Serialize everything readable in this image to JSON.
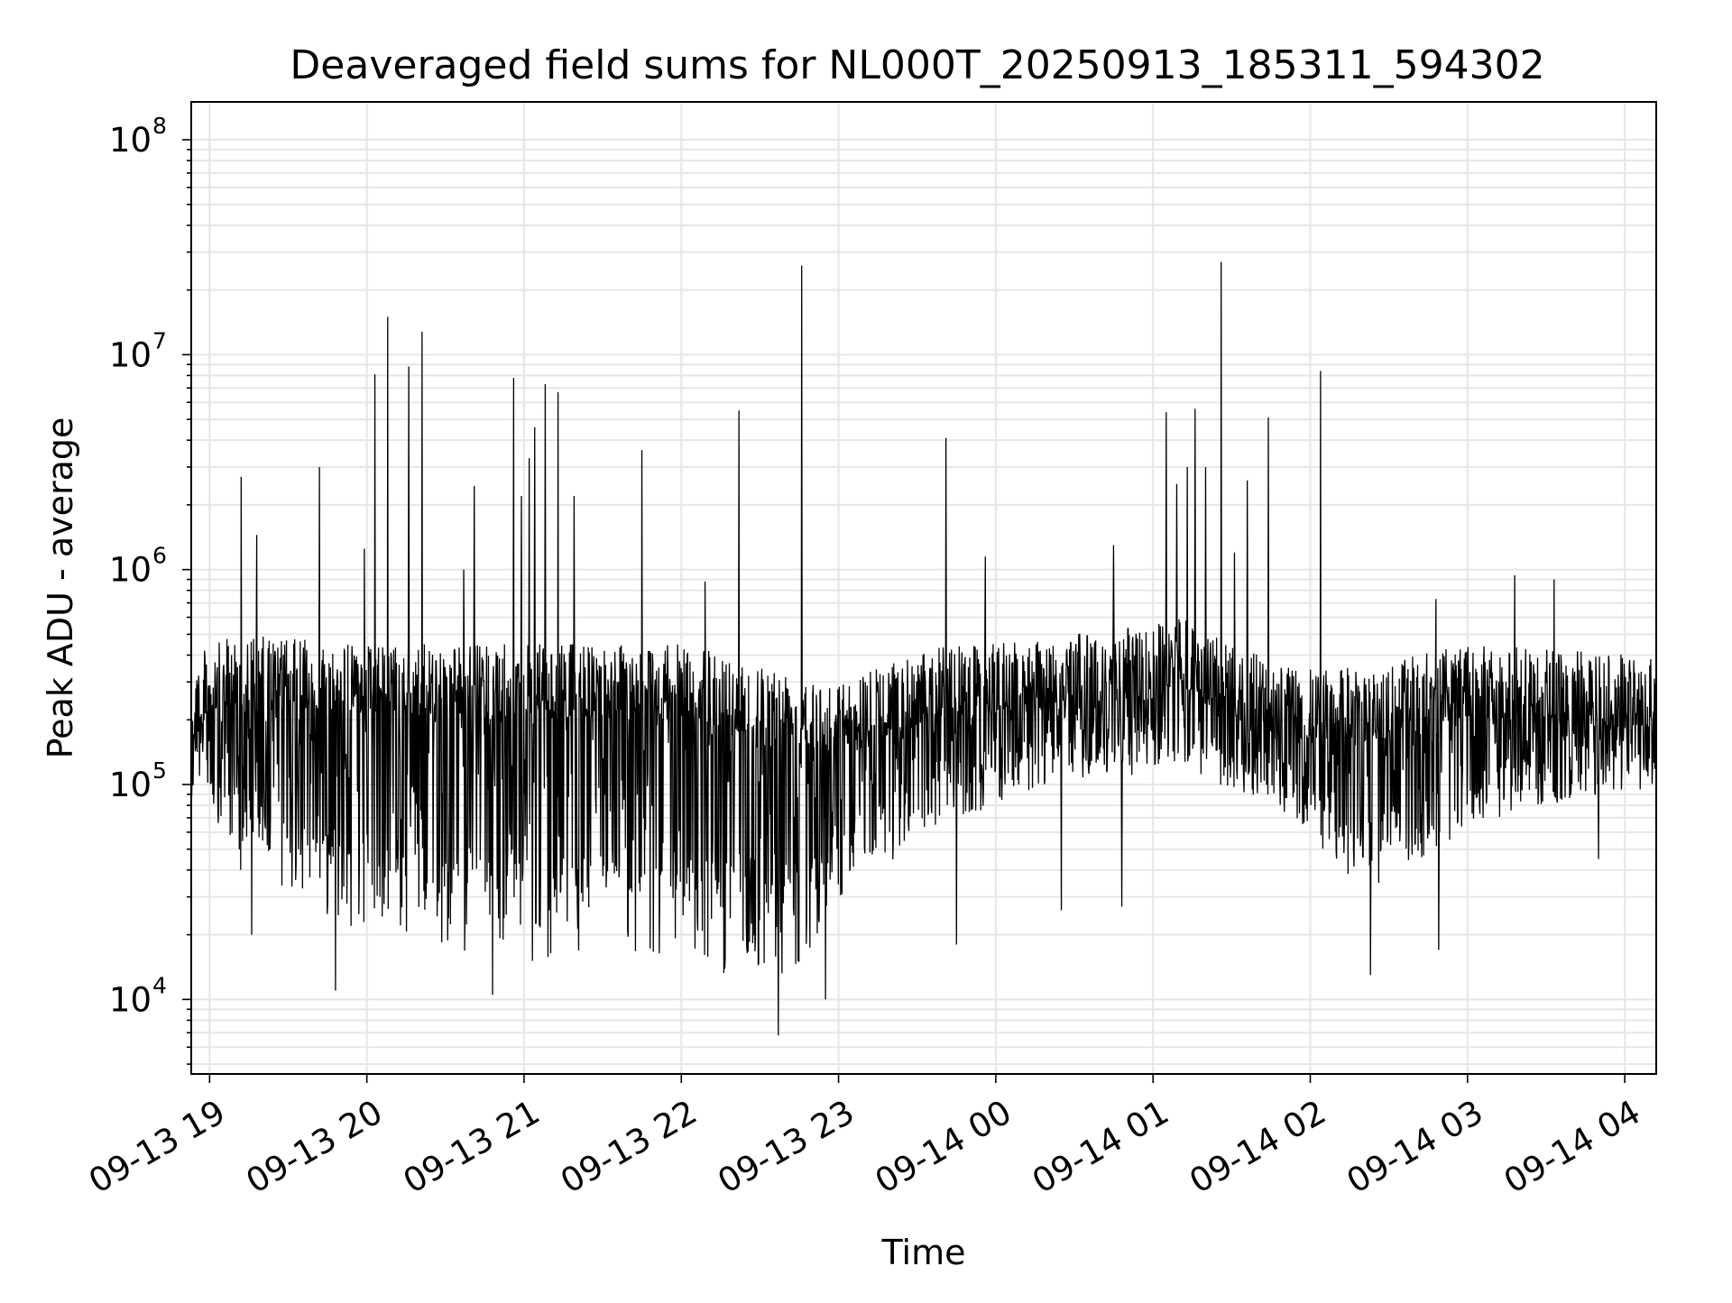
{
  "chart_data": {
    "type": "line",
    "title": "Deaveraged field sums for NL000T_20250913_185311_594302",
    "xlabel": "Time",
    "ylabel": "Peak ADU - average",
    "y_scale": "log",
    "grid": true,
    "legend": "none",
    "xlim": [
      "2025-09-13T18:53",
      "2025-09-14T04:12"
    ],
    "ylim": [
      4500,
      150000000
    ],
    "x_tick_labels": [
      "09-13 19",
      "09-13 20",
      "09-13 21",
      "09-13 22",
      "09-13 23",
      "09-14 00",
      "09-14 01",
      "09-14 02",
      "09-14 03",
      "09-14 04"
    ],
    "x_ticks": [
      "2025-09-13T19:00",
      "2025-09-13T20:00",
      "2025-09-13T21:00",
      "2025-09-13T22:00",
      "2025-09-13T23:00",
      "2025-09-14T00:00",
      "2025-09-14T01:00",
      "2025-09-14T02:00",
      "2025-09-14T03:00",
      "2025-09-14T04:00"
    ],
    "y_tick_labels": [
      {
        "base": "10",
        "exp": "4",
        "value": 10000
      },
      {
        "base": "10",
        "exp": "5",
        "value": 100000
      },
      {
        "base": "10",
        "exp": "6",
        "value": 1000000
      },
      {
        "base": "10",
        "exp": "7",
        "value": 10000000
      },
      {
        "base": "10",
        "exp": "8",
        "value": 100000000
      }
    ],
    "line_color": "#000000",
    "grid_color": "#e6e6e6",
    "baseline_profile": [
      {
        "t": "2025-09-13T18:53",
        "hi": 400000,
        "lo": 100000
      },
      {
        "t": "2025-09-13T19:10",
        "hi": 500000,
        "lo": 40000
      },
      {
        "t": "2025-09-13T20:00",
        "hi": 450000,
        "lo": 20000
      },
      {
        "t": "2025-09-13T21:00",
        "hi": 450000,
        "lo": 15000
      },
      {
        "t": "2025-09-13T22:00",
        "hi": 450000,
        "lo": 15000
      },
      {
        "t": "2025-09-13T22:40",
        "hi": 350000,
        "lo": 11000
      },
      {
        "t": "2025-09-13T23:00",
        "hi": 300000,
        "lo": 30000
      },
      {
        "t": "2025-09-13T23:40",
        "hi": 450000,
        "lo": 60000
      },
      {
        "t": "2025-09-14T00:30",
        "hi": 500000,
        "lo": 120000
      },
      {
        "t": "2025-09-14T01:10",
        "hi": 600000,
        "lo": 120000
      },
      {
        "t": "2025-09-14T01:50",
        "hi": 350000,
        "lo": 80000
      },
      {
        "t": "2025-09-14T02:20",
        "hi": 350000,
        "lo": 30000
      },
      {
        "t": "2025-09-14T03:00",
        "hi": 450000,
        "lo": 60000
      },
      {
        "t": "2025-09-14T04:12",
        "hi": 400000,
        "lo": 120000
      }
    ],
    "spikes": [
      {
        "t": "2025-09-13T19:12",
        "y": 2700000
      },
      {
        "t": "2025-09-13T19:18",
        "y": 1450000
      },
      {
        "t": "2025-09-13T19:42",
        "y": 3000000
      },
      {
        "t": "2025-09-13T19:59",
        "y": 1250000
      },
      {
        "t": "2025-09-13T20:03",
        "y": 8100000
      },
      {
        "t": "2025-09-13T20:08",
        "y": 15000000
      },
      {
        "t": "2025-09-13T20:16",
        "y": 8800000
      },
      {
        "t": "2025-09-13T20:21",
        "y": 12800000
      },
      {
        "t": "2025-09-13T20:37",
        "y": 1000000
      },
      {
        "t": "2025-09-13T20:41",
        "y": 2450000
      },
      {
        "t": "2025-09-13T20:56",
        "y": 7800000
      },
      {
        "t": "2025-09-13T20:59",
        "y": 2200000
      },
      {
        "t": "2025-09-13T21:02",
        "y": 3300000
      },
      {
        "t": "2025-09-13T21:04",
        "y": 4600000
      },
      {
        "t": "2025-09-13T21:08",
        "y": 7300000
      },
      {
        "t": "2025-09-13T21:13",
        "y": 6700000
      },
      {
        "t": "2025-09-13T21:19",
        "y": 2200000
      },
      {
        "t": "2025-09-13T21:45",
        "y": 3600000
      },
      {
        "t": "2025-09-13T22:09",
        "y": 880000
      },
      {
        "t": "2025-09-13T22:22",
        "y": 5500000
      },
      {
        "t": "2025-09-13T22:46",
        "y": 26000000
      },
      {
        "t": "2025-09-13T23:41",
        "y": 4100000
      },
      {
        "t": "2025-09-13T23:56",
        "y": 1150000
      },
      {
        "t": "2025-09-14T00:45",
        "y": 1300000
      },
      {
        "t": "2025-09-14T01:05",
        "y": 5400000
      },
      {
        "t": "2025-09-14T01:09",
        "y": 2500000
      },
      {
        "t": "2025-09-14T01:13",
        "y": 3000000
      },
      {
        "t": "2025-09-14T01:16",
        "y": 5600000
      },
      {
        "t": "2025-09-14T01:20",
        "y": 3000000
      },
      {
        "t": "2025-09-14T01:26",
        "y": 27000000
      },
      {
        "t": "2025-09-14T01:31",
        "y": 1200000
      },
      {
        "t": "2025-09-14T01:36",
        "y": 2600000
      },
      {
        "t": "2025-09-14T01:44",
        "y": 5100000
      },
      {
        "t": "2025-09-14T02:04",
        "y": 8400000
      },
      {
        "t": "2025-09-14T02:48",
        "y": 730000
      },
      {
        "t": "2025-09-14T03:18",
        "y": 940000
      },
      {
        "t": "2025-09-14T03:33",
        "y": 900000
      }
    ],
    "dips": [
      {
        "t": "2025-09-13T19:16",
        "y": 20000
      },
      {
        "t": "2025-09-13T19:48",
        "y": 11000
      },
      {
        "t": "2025-09-13T20:48",
        "y": 10500
      },
      {
        "t": "2025-09-13T22:37",
        "y": 6800
      },
      {
        "t": "2025-09-13T22:55",
        "y": 10000
      },
      {
        "t": "2025-09-13T23:45",
        "y": 18000
      },
      {
        "t": "2025-09-14T00:25",
        "y": 26000
      },
      {
        "t": "2025-09-14T00:48",
        "y": 27000
      },
      {
        "t": "2025-09-14T02:23",
        "y": 13000
      },
      {
        "t": "2025-09-14T02:49",
        "y": 17000
      },
      {
        "t": "2025-09-14T03:50",
        "y": 45000
      }
    ]
  }
}
